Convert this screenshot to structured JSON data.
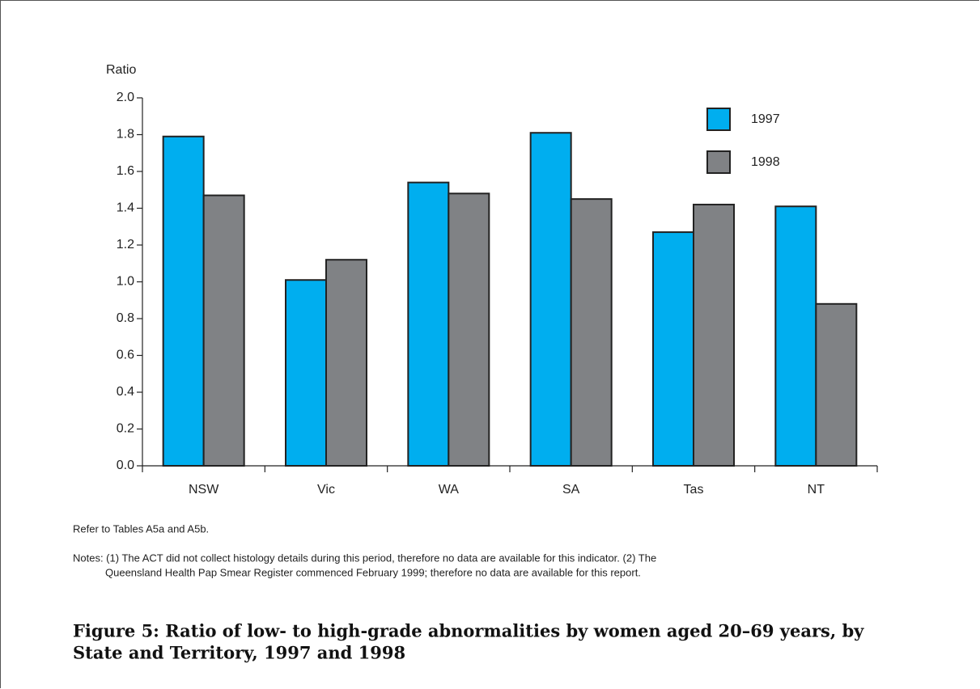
{
  "chart_data": {
    "type": "bar",
    "y_label": "Ratio",
    "categories": [
      "NSW",
      "Vic",
      "WA",
      "SA",
      "Tas",
      "NT"
    ],
    "series": [
      {
        "name": "1997",
        "color": "#00aeef",
        "values": [
          1.79,
          1.01,
          1.54,
          1.81,
          1.27,
          1.41
        ]
      },
      {
        "name": "1998",
        "color": "#808285",
        "values": [
          1.47,
          1.12,
          1.48,
          1.45,
          1.42,
          0.88
        ]
      }
    ],
    "ylim": [
      0,
      2
    ],
    "yticks": [
      {
        "value": 0,
        "label": "0.0"
      },
      0.2,
      0.4,
      0.6,
      0.8,
      {
        "value": 1,
        "label": "1.0"
      },
      1.2,
      1.4,
      1.6,
      1.8,
      {
        "value": 2,
        "label": "2.0"
      }
    ],
    "legend": "top-right",
    "source": "Refer to Tables A5a and A5b.",
    "notes": [
      "Notes: (1) The ACT did not collect histology details during this period, therefore no data are available for this indicator. (2) The",
      "Queensland Health Pap Smear Register commenced February 1999; therefore no data are available for this report."
    ],
    "caption": [
      "Figure 5: Ratio of low- to high-grade abnormalities by women aged 20–69 years, by",
      "State and Territory, 1997 and 1998"
    ]
  }
}
